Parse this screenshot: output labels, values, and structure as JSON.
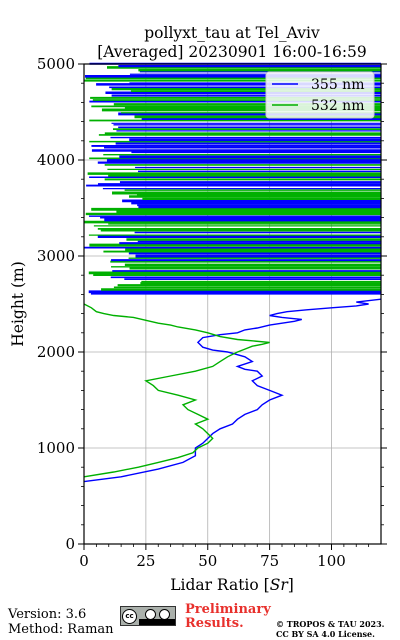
{
  "chart_data": {
    "type": "line",
    "title": "pollyxt_tau at Tel_Aviv",
    "subtitle": "[Averaged] 20230901 16:00-16:59",
    "xlabel": "Lidar Ratio [Sr]",
    "ylabel": "Height (m)",
    "xlim": [
      0,
      120
    ],
    "ylim": [
      0,
      5000
    ],
    "xticks": [
      "0",
      "25",
      "50",
      "75",
      "100"
    ],
    "yticks": [
      "0",
      "1000",
      "2000",
      "3000",
      "4000",
      "5000"
    ],
    "grid": true,
    "legend_position": "top-right",
    "series": [
      {
        "name": "355 nm",
        "color": "#0000ff",
        "x": [
          0,
          15,
          30,
          40,
          45,
          45,
          48,
          50,
          52,
          55,
          60,
          62,
          65,
          70,
          72,
          75,
          80,
          75,
          70,
          68,
          72,
          70,
          65,
          62,
          68,
          65,
          58,
          52,
          48,
          46,
          48,
          55,
          62,
          65,
          70,
          75,
          80,
          85,
          88,
          80,
          75,
          78,
          82,
          90,
          100,
          110,
          115,
          110,
          120
        ],
        "y": [
          650,
          700,
          780,
          850,
          920,
          1000,
          1050,
          1100,
          1150,
          1200,
          1250,
          1300,
          1350,
          1400,
          1450,
          1500,
          1550,
          1600,
          1650,
          1700,
          1750,
          1800,
          1820,
          1850,
          1900,
          1950,
          2000,
          2020,
          2050,
          2100,
          2150,
          2180,
          2200,
          2230,
          2250,
          2280,
          2300,
          2320,
          2340,
          2360,
          2380,
          2400,
          2420,
          2440,
          2460,
          2480,
          2500,
          2520,
          2550
        ]
      },
      {
        "name": "532 nm",
        "color": "#00b000",
        "x": [
          0,
          12,
          22,
          30,
          38,
          44,
          46,
          50,
          52,
          50,
          48,
          45,
          50,
          46,
          42,
          40,
          45,
          38,
          30,
          28,
          25,
          35,
          45,
          52,
          55,
          58,
          62,
          65,
          68,
          72,
          75,
          62,
          55,
          50,
          45,
          38,
          35,
          30,
          25,
          20,
          12,
          8,
          5,
          3,
          0
        ],
        "y": [
          700,
          750,
          800,
          850,
          900,
          950,
          1000,
          1050,
          1100,
          1150,
          1200,
          1250,
          1300,
          1350,
          1400,
          1450,
          1500,
          1550,
          1600,
          1650,
          1700,
          1750,
          1800,
          1850,
          1900,
          1950,
          2000,
          2030,
          2060,
          2080,
          2100,
          2130,
          2160,
          2200,
          2230,
          2260,
          2280,
          2300,
          2330,
          2360,
          2380,
          2400,
          2420,
          2460,
          2500
        ]
      }
    ],
    "noise_band": {
      "y_min": 2600,
      "y_max": 5000,
      "note_lines": true
    }
  },
  "footer": {
    "version": "Version: 3.6",
    "method": "Method: Raman",
    "preliminary": "Preliminary\nResults.",
    "preliminary_1": "Preliminary",
    "preliminary_2": "Results.",
    "copyright_1": "© TROPOS & TAU 2023.",
    "copyright_2": "CC BY SA 4.0 License."
  },
  "badge": {
    "label": "CC BY SA"
  }
}
